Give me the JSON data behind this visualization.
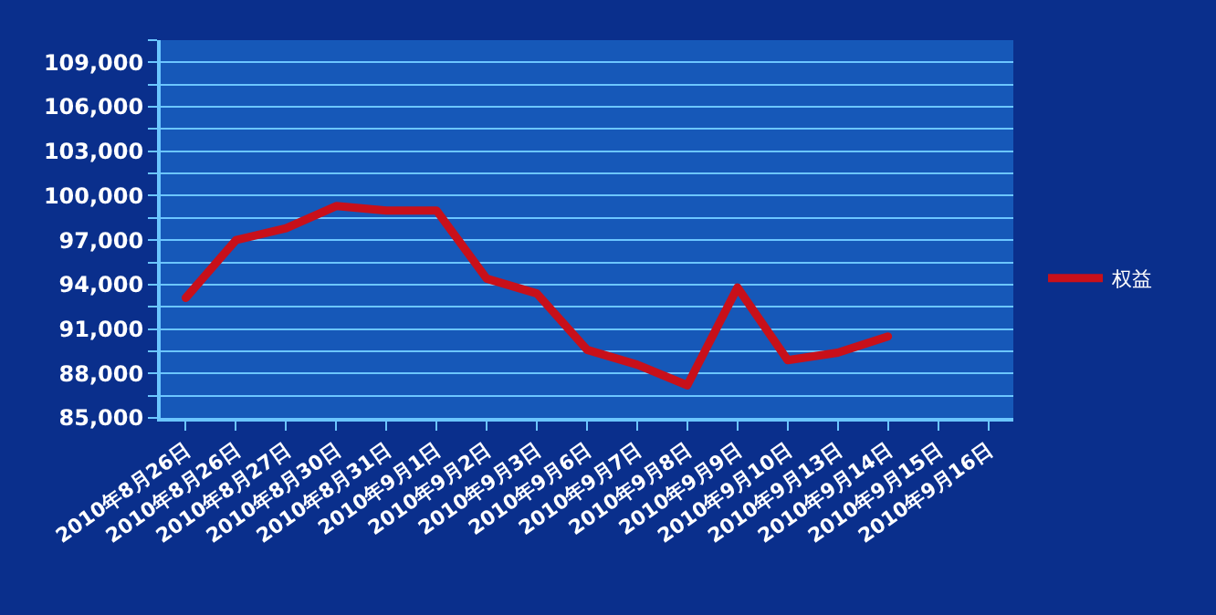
{
  "chart_data": {
    "type": "line",
    "categories": [
      "2010年8月26日",
      "2010年8月26日",
      "2010年8月27日",
      "2010年8月30日",
      "2010年8月31日",
      "2010年9月1日",
      "2010年9月2日",
      "2010年9月3日",
      "2010年9月6日",
      "2010年9月7日",
      "2010年9月8日",
      "2010年9月9日",
      "2010年9月10日",
      "2010年9月13日",
      "2010年9月14日",
      "2010年9月15日",
      "2010年9月16日"
    ],
    "series": [
      {
        "name": "权益",
        "color": "#c8101a",
        "values": [
          93100,
          97000,
          97800,
          99300,
          99000,
          99000,
          94400,
          93400,
          89600,
          88600,
          87200,
          93800,
          88900,
          89400,
          90500,
          null,
          null
        ]
      }
    ],
    "ylim": [
      85000,
      110500
    ],
    "yticks": [
      {
        "value": 85000,
        "label": "85,000"
      },
      {
        "value": 86500,
        "label": null
      },
      {
        "value": 88000,
        "label": "88,000"
      },
      {
        "value": 89500,
        "label": null
      },
      {
        "value": 91000,
        "label": "91,000"
      },
      {
        "value": 92500,
        "label": null
      },
      {
        "value": 94000,
        "label": "94,000"
      },
      {
        "value": 95500,
        "label": null
      },
      {
        "value": 97000,
        "label": "97,000"
      },
      {
        "value": 98500,
        "label": null
      },
      {
        "value": 100000,
        "label": "100,000"
      },
      {
        "value": 101500,
        "label": null
      },
      {
        "value": 103000,
        "label": "103,000"
      },
      {
        "value": 104500,
        "label": null
      },
      {
        "value": 106000,
        "label": "106,000"
      },
      {
        "value": 107500,
        "label": null
      },
      {
        "value": 109000,
        "label": "109,000"
      },
      {
        "value": 110500,
        "label": null
      }
    ],
    "grid": "y",
    "legend": "right",
    "marker": "none",
    "line_style": "solid"
  }
}
